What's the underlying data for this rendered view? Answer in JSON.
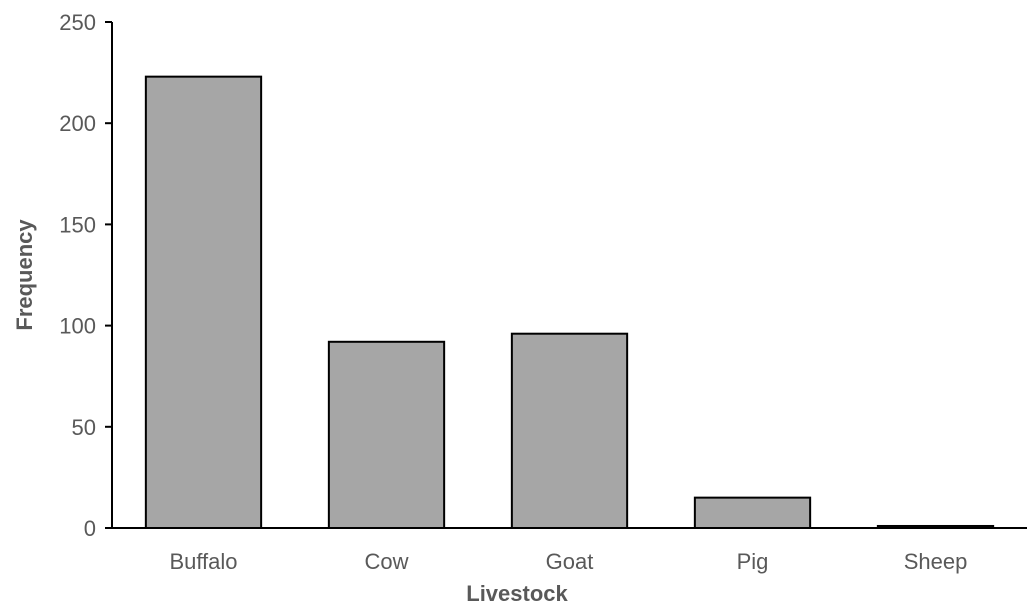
{
  "chart_data": {
    "type": "bar",
    "title": "",
    "xlabel": "Livestock",
    "ylabel": "Frequency",
    "categories": [
      "Buffalo",
      "Cow",
      "Goat",
      "Pig",
      "Sheep"
    ],
    "values": [
      223,
      92,
      96,
      15,
      1
    ],
    "ylim": [
      0,
      250
    ],
    "yticks": [
      0,
      50,
      100,
      150,
      200,
      250
    ],
    "grid": false,
    "bar_color": "#a6a6a6",
    "bar_outline_color": "#000000",
    "axis_color": "#000000",
    "text_color": "#595959"
  }
}
